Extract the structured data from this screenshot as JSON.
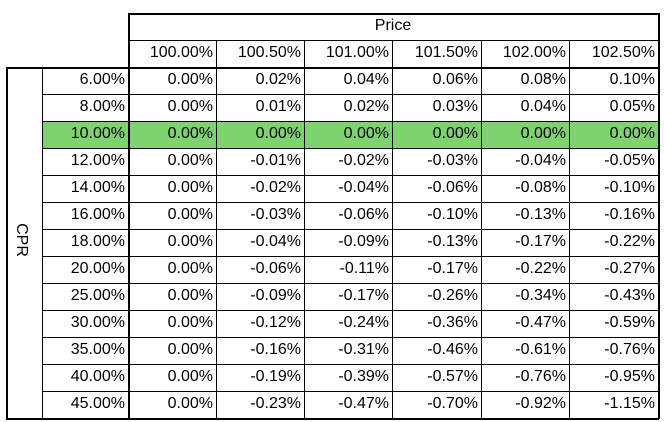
{
  "table": {
    "column_group_label": "Price",
    "row_group_label": "CPR",
    "highlight_color": "#7ed36e",
    "highlighted_row_label": "10.00%",
    "price_headers": [
      "100.00%",
      "100.50%",
      "101.00%",
      "101.50%",
      "102.00%",
      "102.50%"
    ],
    "rows": [
      {
        "cpr": "6.00%",
        "values": [
          "0.00%",
          "0.02%",
          "0.04%",
          "0.06%",
          "0.08%",
          "0.10%"
        ]
      },
      {
        "cpr": "8.00%",
        "values": [
          "0.00%",
          "0.01%",
          "0.02%",
          "0.03%",
          "0.04%",
          "0.05%"
        ]
      },
      {
        "cpr": "10.00%",
        "values": [
          "0.00%",
          "0.00%",
          "0.00%",
          "0.00%",
          "0.00%",
          "0.00%"
        ]
      },
      {
        "cpr": "12.00%",
        "values": [
          "0.00%",
          "-0.01%",
          "-0.02%",
          "-0.03%",
          "-0.04%",
          "-0.05%"
        ]
      },
      {
        "cpr": "14.00%",
        "values": [
          "0.00%",
          "-0.02%",
          "-0.04%",
          "-0.06%",
          "-0.08%",
          "-0.10%"
        ]
      },
      {
        "cpr": "16.00%",
        "values": [
          "0.00%",
          "-0.03%",
          "-0.06%",
          "-0.10%",
          "-0.13%",
          "-0.16%"
        ]
      },
      {
        "cpr": "18.00%",
        "values": [
          "0.00%",
          "-0.04%",
          "-0.09%",
          "-0.13%",
          "-0.17%",
          "-0.22%"
        ]
      },
      {
        "cpr": "20.00%",
        "values": [
          "0.00%",
          "-0.06%",
          "-0.11%",
          "-0.17%",
          "-0.22%",
          "-0.27%"
        ]
      },
      {
        "cpr": "25.00%",
        "values": [
          "0.00%",
          "-0.09%",
          "-0.17%",
          "-0.26%",
          "-0.34%",
          "-0.43%"
        ]
      },
      {
        "cpr": "30.00%",
        "values": [
          "0.00%",
          "-0.12%",
          "-0.24%",
          "-0.36%",
          "-0.47%",
          "-0.59%"
        ]
      },
      {
        "cpr": "35.00%",
        "values": [
          "0.00%",
          "-0.16%",
          "-0.31%",
          "-0.46%",
          "-0.61%",
          "-0.76%"
        ]
      },
      {
        "cpr": "40.00%",
        "values": [
          "0.00%",
          "-0.19%",
          "-0.39%",
          "-0.57%",
          "-0.76%",
          "-0.95%"
        ]
      },
      {
        "cpr": "45.00%",
        "values": [
          "0.00%",
          "-0.23%",
          "-0.47%",
          "-0.70%",
          "-0.92%",
          "-1.15%"
        ]
      }
    ]
  }
}
